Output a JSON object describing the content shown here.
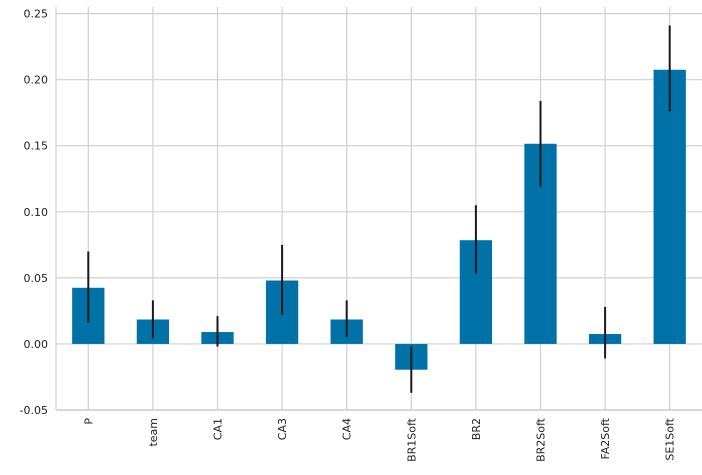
{
  "chart_data": {
    "type": "bar",
    "title": "",
    "xlabel": "",
    "ylabel": "",
    "categories": [
      "P",
      "team",
      "CA1",
      "CA3",
      "CA4",
      "BR1Soft",
      "BR2",
      "BR2Soft",
      "FA2Soft",
      "SE1Soft"
    ],
    "values": [
      0.0425,
      0.0185,
      0.009,
      0.048,
      0.0185,
      -0.0195,
      0.0785,
      0.1515,
      0.0075,
      0.2075
    ],
    "error_low": [
      0.016,
      0.004,
      -0.002,
      0.022,
      0.005,
      -0.037,
      0.053,
      0.119,
      -0.011,
      0.176
    ],
    "error_high": [
      0.07,
      0.033,
      0.021,
      0.075,
      0.033,
      -0.002,
      0.105,
      0.184,
      0.028,
      0.241
    ],
    "ylim": [
      -0.05,
      0.255
    ],
    "yticks": [
      "-0.05",
      "0.00",
      "0.05",
      "0.10",
      "0.15",
      "0.20",
      "0.25"
    ],
    "grid": true,
    "colors": {
      "bar": "#0072a8",
      "error": "#1a1a1a",
      "grid": "#d0d0d0"
    }
  }
}
